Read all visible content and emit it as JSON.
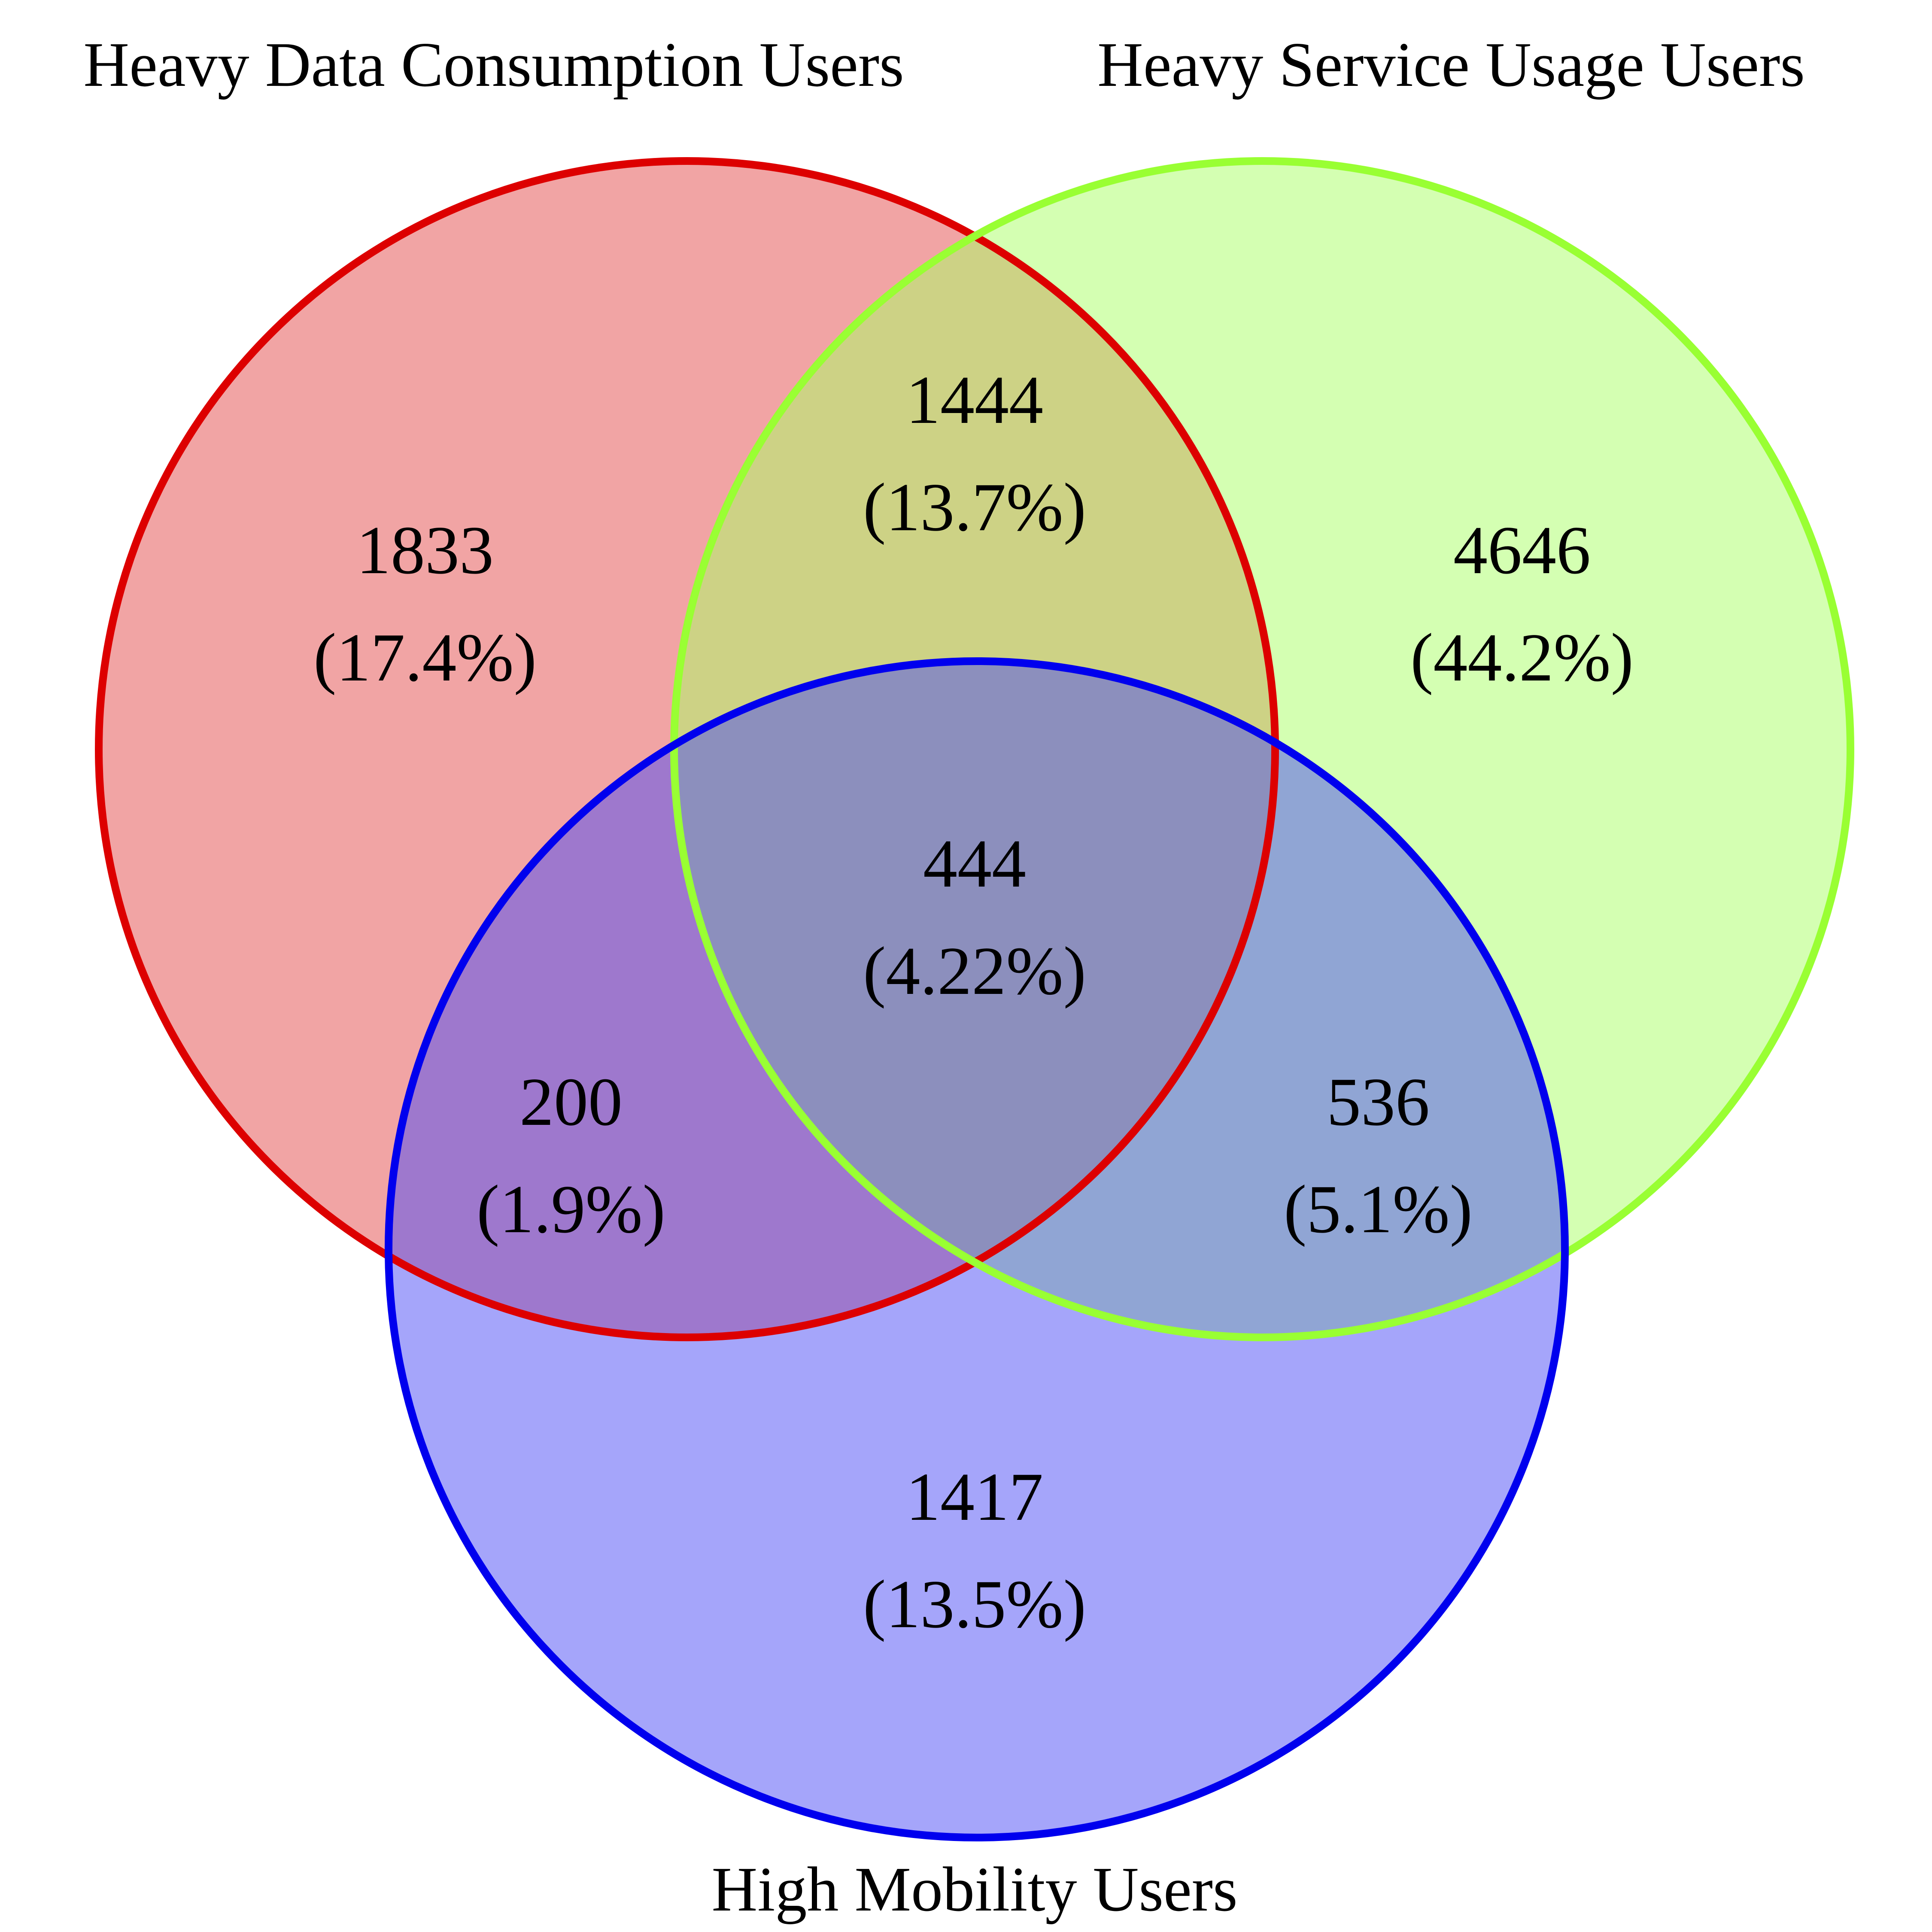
{
  "diagram": {
    "type": "venn3",
    "colors": {
      "set_a_fill": "#e34a4a",
      "set_a_stroke": "#dd0000",
      "set_b_fill": "#aaff66",
      "set_b_stroke": "#99ff33",
      "set_c_fill": "#4c4cf5",
      "set_c_stroke": "#0000ee",
      "background": "#ffffff"
    },
    "sets": {
      "a": {
        "label": "Heavy Data Consumption Users"
      },
      "b": {
        "label": "Heavy Service Usage Users"
      },
      "c": {
        "label": "High Mobility Users"
      }
    },
    "regions": {
      "a_only": {
        "count": "1833",
        "pct": "(17.4%)"
      },
      "ab": {
        "count": "1444",
        "pct": "(13.7%)"
      },
      "b_only": {
        "count": "4646",
        "pct": "(44.2%)"
      },
      "abc": {
        "count": "444",
        "pct": "(4.22%)"
      },
      "ac": {
        "count": "200",
        "pct": "(1.9%)"
      },
      "bc": {
        "count": "536",
        "pct": "(5.1%)"
      },
      "c_only": {
        "count": "1417",
        "pct": "(13.5%)"
      }
    }
  }
}
